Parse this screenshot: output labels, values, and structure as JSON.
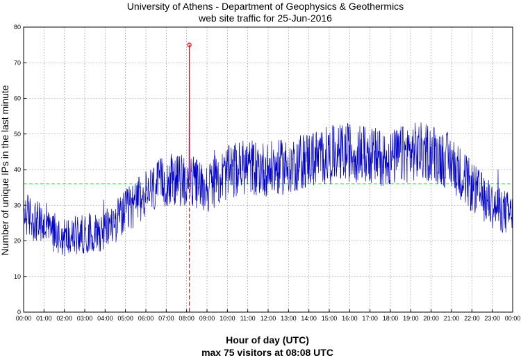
{
  "chart_data": {
    "type": "line",
    "title": "University of Athens - Department of Geophysics & Geothermics",
    "subtitle": "web site traffic for 25-Jun-2016",
    "xlabel": "Hour of day (UTC)",
    "ylabel": "Number of unique IPs in the last minute",
    "annotation": "max 75 visitors at 08:08 UTC",
    "xlim": [
      "00:00",
      "24:00"
    ],
    "ylim": [
      0,
      80
    ],
    "x_tick_labels": [
      "00:00",
      "01:00",
      "02:00",
      "03:00",
      "04:00",
      "05:00",
      "06:00",
      "07:00",
      "08:00",
      "09:00",
      "10:00",
      "11:00",
      "12:00",
      "13:00",
      "14:00",
      "15:00",
      "16:00",
      "17:00",
      "18:00",
      "19:00",
      "20:00",
      "21:00",
      "22:00",
      "23:00",
      "00:00"
    ],
    "y_ticks": [
      0,
      10,
      20,
      30,
      40,
      50,
      60,
      70,
      80
    ],
    "grid": true,
    "series": [
      {
        "color": "#0000cc",
        "sampling": "per minute (approximate, hourly mean levels)",
        "hourly_mean": [
          {
            "x": "00:00",
            "y": 28
          },
          {
            "x": "01:00",
            "y": 24
          },
          {
            "x": "02:00",
            "y": 21
          },
          {
            "x": "03:00",
            "y": 22
          },
          {
            "x": "04:00",
            "y": 23
          },
          {
            "x": "05:00",
            "y": 28
          },
          {
            "x": "06:00",
            "y": 33
          },
          {
            "x": "07:00",
            "y": 37
          },
          {
            "x": "08:00",
            "y": 37
          },
          {
            "x": "09:00",
            "y": 35
          },
          {
            "x": "10:00",
            "y": 39
          },
          {
            "x": "11:00",
            "y": 41
          },
          {
            "x": "12:00",
            "y": 40
          },
          {
            "x": "13:00",
            "y": 41
          },
          {
            "x": "14:00",
            "y": 43
          },
          {
            "x": "15:00",
            "y": 44
          },
          {
            "x": "16:00",
            "y": 45
          },
          {
            "x": "17:00",
            "y": 44
          },
          {
            "x": "18:00",
            "y": 43
          },
          {
            "x": "19:00",
            "y": 45
          },
          {
            "x": "20:00",
            "y": 45
          },
          {
            "x": "21:00",
            "y": 42
          },
          {
            "x": "22:00",
            "y": 35
          },
          {
            "x": "23:00",
            "y": 30
          },
          {
            "x": "24:00",
            "y": 27
          }
        ]
      }
    ],
    "mean_line": {
      "y": 36,
      "color": "#33cc33",
      "style": "dashed"
    },
    "max_marker": {
      "x": "08:08",
      "y": 75,
      "color": "#ff0000"
    }
  }
}
